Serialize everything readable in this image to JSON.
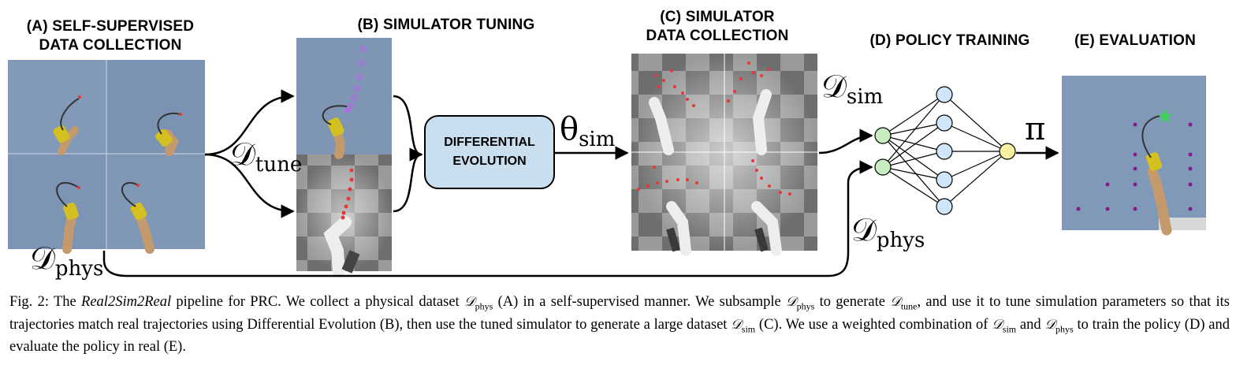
{
  "figure": {
    "panels": {
      "a_title_line1": "(A) SELF-SUPERVISED",
      "a_title_line2": "DATA COLLECTION",
      "b_title": "(B) SIMULATOR TUNING",
      "c_title_line1": "(C) SIMULATOR",
      "c_title_line2": "DATA COLLECTION",
      "d_title": "(D) POLICY TRAINING",
      "e_title": "(E) EVALUATION"
    },
    "de_box": {
      "line1": "DIFFERENTIAL",
      "line2": "EVOLUTION"
    },
    "math_labels": {
      "d_tune": "𝒟",
      "d_tune_sub": "tune",
      "theta_sim": "θ",
      "theta_sim_sub": "sim",
      "d_sim": "𝒟",
      "d_sim_sub": "sim",
      "d_phys_left": "𝒟",
      "d_phys_left_sub": "phys",
      "d_phys_right": "𝒟",
      "d_phys_right_sub": "phys",
      "pi": "π"
    },
    "colors": {
      "background_blue": "#7e95b4",
      "de_box_fill": "#c9dff0",
      "input_node": "#c8ecc0",
      "hidden_node": "#cfe6fa",
      "output_node": "#f8f0a0",
      "trajectory_red": "#e53935",
      "trajectory_purple": "#c060f0",
      "eval_dots": "#8a1a8a",
      "goal_star": "#40d060"
    }
  },
  "caption": {
    "fig_label": "Fig. 2: The ",
    "italic_name": "Real2Sim2Real",
    "s1": " pipeline for PRC. We collect a physical dataset ",
    "d": "𝒟",
    "phys": "phys",
    "tune": "tune",
    "sim": "sim",
    "s2": " (A) in a self-supervised manner. We subsample ",
    "s3": " to generate ",
    "s4": ", and use it to tune simulation parameters so that its trajectories match real trajectories using Differential Evolution (B), then use the tuned simulator to generate a large dataset ",
    "s5": " (C). We use a weighted combination of ",
    "s6": " and ",
    "s7": " to train the policy (D) and evaluate the policy in real (E)."
  }
}
